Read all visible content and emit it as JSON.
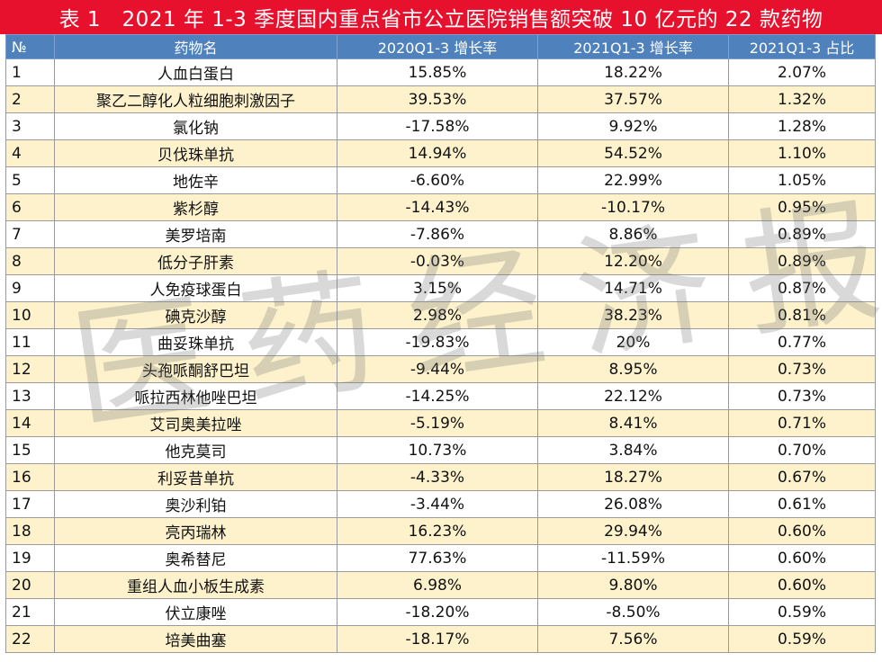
{
  "title": "表 1　2021 年 1-3 季度国内重点省市公立医院销售额突破 10 亿元的 22 款药物",
  "headers": {
    "no": "№",
    "name": "药物名",
    "growth_2020": "2020Q1-3 增长率",
    "growth_2021": "2021Q1-3 增长率",
    "share_2021": "2021Q1-3 占比"
  },
  "rows": [
    {
      "no": "1",
      "name": "人血白蛋白",
      "growth_2020": "15.85%",
      "growth_2021": "18.22%",
      "share_2021": "2.07%"
    },
    {
      "no": "2",
      "name": "聚乙二醇化人粒细胞刺激因子",
      "growth_2020": "39.53%",
      "growth_2021": "37.57%",
      "share_2021": "1.32%"
    },
    {
      "no": "3",
      "name": "氯化钠",
      "growth_2020": "-17.58%",
      "growth_2021": "9.92%",
      "share_2021": "1.28%"
    },
    {
      "no": "4",
      "name": "贝伐珠单抗",
      "growth_2020": "14.94%",
      "growth_2021": "54.52%",
      "share_2021": "1.10%"
    },
    {
      "no": "5",
      "name": "地佐辛",
      "growth_2020": "-6.60%",
      "growth_2021": "22.99%",
      "share_2021": "1.05%"
    },
    {
      "no": "6",
      "name": "紫杉醇",
      "growth_2020": "-14.43%",
      "growth_2021": "-10.17%",
      "share_2021": "0.95%"
    },
    {
      "no": "7",
      "name": "美罗培南",
      "growth_2020": "-7.86%",
      "growth_2021": "8.86%",
      "share_2021": "0.89%"
    },
    {
      "no": "8",
      "name": "低分子肝素",
      "growth_2020": "-0.03%",
      "growth_2021": "12.20%",
      "share_2021": "0.89%"
    },
    {
      "no": "9",
      "name": "人免疫球蛋白",
      "growth_2020": "3.15%",
      "growth_2021": "14.71%",
      "share_2021": "0.87%"
    },
    {
      "no": "10",
      "name": "碘克沙醇",
      "growth_2020": "2.98%",
      "growth_2021": "38.23%",
      "share_2021": "0.81%"
    },
    {
      "no": "11",
      "name": "曲妥珠单抗",
      "growth_2020": "-19.83%",
      "growth_2021": "20%",
      "share_2021": "0.77%"
    },
    {
      "no": "12",
      "name": "头孢哌酮舒巴坦",
      "growth_2020": "-9.44%",
      "growth_2021": "8.95%",
      "share_2021": "0.73%"
    },
    {
      "no": "13",
      "name": "哌拉西林他唑巴坦",
      "growth_2020": "-14.25%",
      "growth_2021": "22.12%",
      "share_2021": "0.73%"
    },
    {
      "no": "14",
      "name": "艾司奥美拉唑",
      "growth_2020": "-5.19%",
      "growth_2021": "8.41%",
      "share_2021": "0.71%"
    },
    {
      "no": "15",
      "name": "他克莫司",
      "growth_2020": "10.73%",
      "growth_2021": "3.84%",
      "share_2021": "0.70%"
    },
    {
      "no": "16",
      "name": "利妥昔单抗",
      "growth_2020": "-4.33%",
      "growth_2021": "18.27%",
      "share_2021": "0.67%"
    },
    {
      "no": "17",
      "name": "奥沙利铂",
      "growth_2020": "-3.44%",
      "growth_2021": "26.08%",
      "share_2021": "0.61%"
    },
    {
      "no": "18",
      "name": "亮丙瑞林",
      "growth_2020": "16.23%",
      "growth_2021": "29.94%",
      "share_2021": "0.60%"
    },
    {
      "no": "19",
      "name": "奥希替尼",
      "growth_2020": "77.63%",
      "growth_2021": "-11.59%",
      "share_2021": "0.60%"
    },
    {
      "no": "20",
      "name": "重组人血小板生成素",
      "growth_2020": "6.98%",
      "growth_2021": "9.80%",
      "share_2021": "0.60%"
    },
    {
      "no": "21",
      "name": "伏立康唑",
      "growth_2020": "-18.20%",
      "growth_2021": "-8.50%",
      "share_2021": "0.59%"
    },
    {
      "no": "22",
      "name": "培美曲塞",
      "growth_2020": "-18.17%",
      "growth_2021": "7.56%",
      "share_2021": "0.59%"
    }
  ],
  "watermark": "医药经济报",
  "colors": {
    "title_bg": "#e8112d",
    "header_bg": "#4f81bd",
    "band_even": "#fdf2cc",
    "band_odd": "#ffffff"
  }
}
